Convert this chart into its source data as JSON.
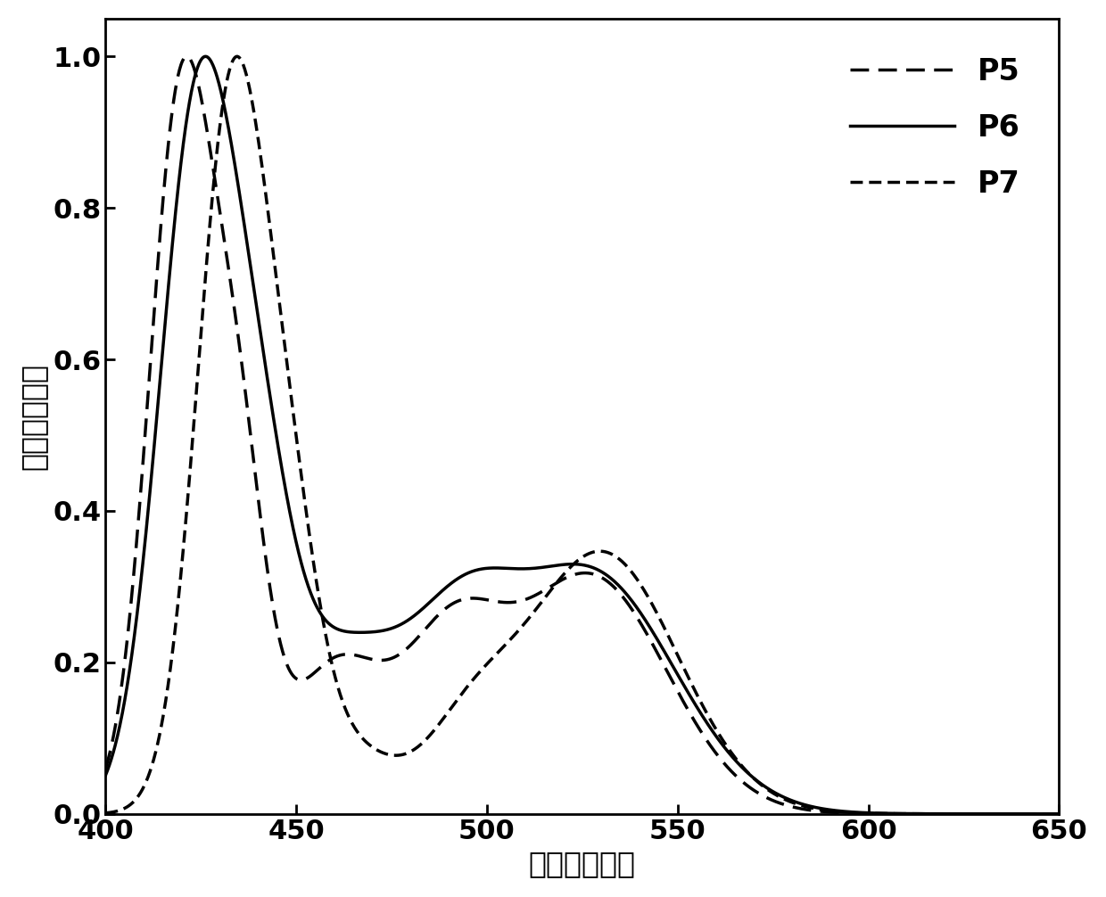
{
  "title": "",
  "xlabel": "波长（纳米）",
  "ylabel": "相对荧光强度",
  "xlim": [
    400,
    650
  ],
  "ylim": [
    0,
    1.05
  ],
  "xticks": [
    400,
    450,
    500,
    550,
    600,
    650
  ],
  "yticks": [
    0,
    0.2,
    0.4,
    0.6,
    0.8,
    1.0
  ],
  "background_color": "#ffffff",
  "line_color": "#000000",
  "legend_labels": [
    "P5",
    "P6",
    "P7"
  ],
  "linewidth": 2.5,
  "font_size_ticks": 22,
  "font_size_labels": 24,
  "font_size_legend": 24
}
